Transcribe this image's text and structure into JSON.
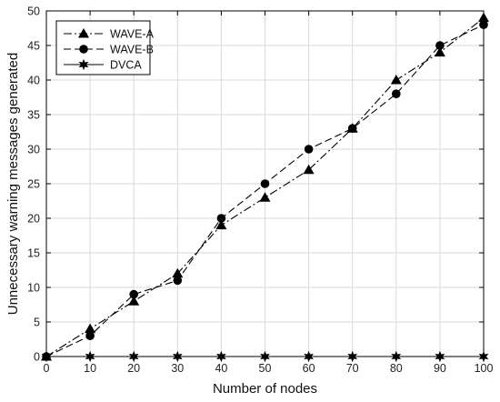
{
  "chart_data": {
    "type": "line",
    "xlabel": "Number of nodes",
    "ylabel": "Unnecessary warning messages generated",
    "xlim": [
      0,
      100
    ],
    "ylim": [
      0,
      50
    ],
    "xticks": [
      0,
      10,
      20,
      30,
      40,
      50,
      60,
      70,
      80,
      90,
      100
    ],
    "yticks": [
      0,
      5,
      10,
      15,
      20,
      25,
      30,
      35,
      40,
      45,
      50
    ],
    "grid": true,
    "legend_position": "top-left",
    "x": [
      0,
      10,
      20,
      30,
      40,
      50,
      60,
      70,
      80,
      90,
      100
    ],
    "series": [
      {
        "name": "WAVE-A",
        "marker": "triangle",
        "dash": "dash-dot",
        "color": "#000000",
        "values": [
          0,
          4,
          8,
          12,
          19,
          23,
          27,
          33,
          40,
          44,
          49
        ]
      },
      {
        "name": "WAVE-B",
        "marker": "circle",
        "dash": "dashed",
        "color": "#000000",
        "values": [
          0,
          3,
          9,
          11,
          20,
          25,
          30,
          33,
          38,
          45,
          48
        ]
      },
      {
        "name": "DVCA",
        "marker": "hexagram",
        "dash": "solid",
        "color": "#000000",
        "values": [
          0,
          0,
          0,
          0,
          0,
          0,
          0,
          0,
          0,
          0,
          0
        ]
      }
    ]
  }
}
